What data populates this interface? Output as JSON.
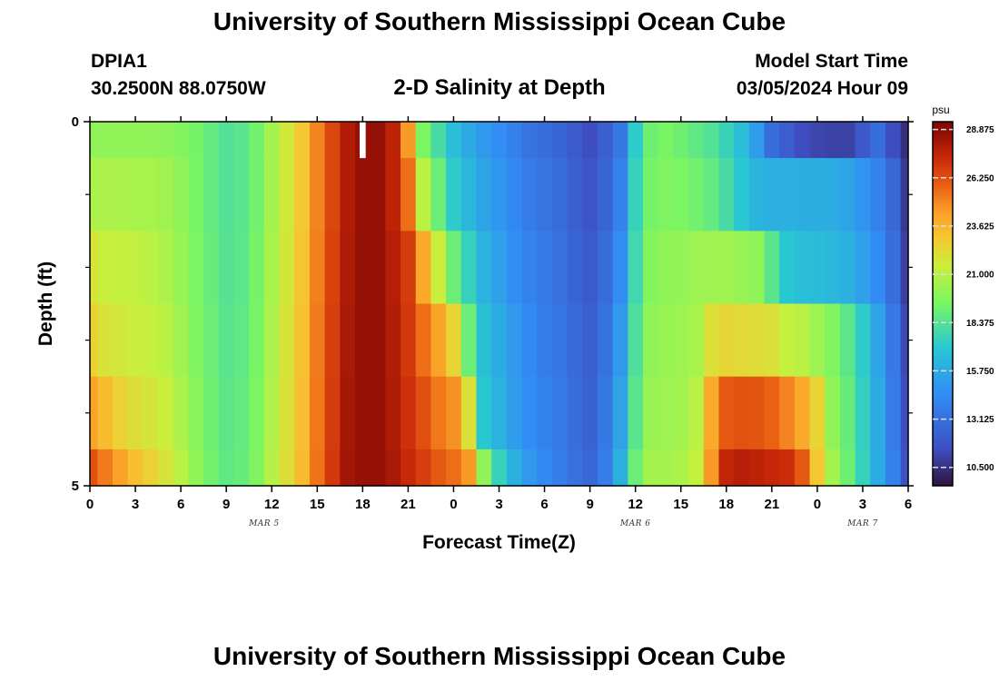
{
  "header": {
    "title": "University of Southern Mississippi Ocean Cube",
    "station_id": "DPIA1",
    "station_coords": "30.2500N  88.0750W",
    "subtitle": "2-D Salinity at Depth",
    "model_start_label": "Model Start Time",
    "model_start_value": "03/05/2024 Hour 09"
  },
  "footer": {
    "title": "University of Southern Mississippi Ocean Cube"
  },
  "chart_data": {
    "type": "heatmap",
    "xlabel": "Forecast Time(Z)",
    "ylabel": "Depth (ft)",
    "x_tick_labels": [
      "0",
      "3",
      "6",
      "9",
      "12",
      "15",
      "18",
      "21",
      "0",
      "3",
      "6",
      "9",
      "12",
      "15",
      "18",
      "21",
      "0",
      "3",
      "6"
    ],
    "x_minor_per_major": 1,
    "date_labels": [
      {
        "text": "MAR 5",
        "at_hour": 11.5
      },
      {
        "text": "MAR 6",
        "at_hour": 36
      },
      {
        "text": "MAR 7",
        "at_hour": 51
      }
    ],
    "x_range_hours": [
      0,
      54
    ],
    "y_tick_labels": [
      {
        "text": "0",
        "depth": 0
      },
      {
        "text": "5",
        "depth": 5
      }
    ],
    "y_minor_ticks": [
      1,
      2,
      3,
      4
    ],
    "ylim": [
      0,
      5
    ],
    "colorbar": {
      "unit": "psu",
      "min": 9.5,
      "max": 29.3,
      "tick_values": [
        28.875,
        26.25,
        23.625,
        21.0,
        18.375,
        15.75,
        13.125,
        10.5
      ],
      "tick_labels": [
        "28.875",
        "26.250",
        "23.625",
        "21.000",
        "18.375",
        "15.750",
        "13.125",
        "10.500"
      ]
    },
    "depth_bands": [
      0,
      0.5,
      1.5,
      2.5,
      3.5,
      4.5,
      5.0
    ],
    "missing_data": [
      {
        "hour": 18,
        "depth_from": 0,
        "depth_to": 0.5
      }
    ],
    "hours": [
      0,
      1,
      2,
      3,
      4,
      5,
      6,
      7,
      8,
      9,
      10,
      11,
      12,
      13,
      14,
      15,
      16,
      17,
      18,
      19,
      20,
      21,
      22,
      23,
      24,
      25,
      26,
      27,
      28,
      29,
      30,
      31,
      32,
      33,
      34,
      35,
      36,
      37,
      38,
      39,
      40,
      41,
      42,
      43,
      44,
      45,
      46,
      47,
      48,
      49,
      50,
      51,
      52,
      53,
      54
    ],
    "salinity_by_band": [
      [
        20.0,
        20.0,
        20.0,
        20.0,
        20.0,
        19.9,
        19.7,
        19.3,
        18.8,
        18.3,
        18.5,
        19.2,
        20.5,
        21.7,
        23.0,
        25.0,
        26.5,
        27.9,
        28.6,
        28.6,
        27.6,
        24.5,
        19.5,
        18.0,
        16.6,
        15.7,
        15.0,
        14.5,
        13.9,
        13.3,
        13.0,
        12.6,
        12.1,
        11.5,
        12.3,
        13.5,
        17.2,
        19.1,
        19.4,
        19.1,
        18.7,
        18.3,
        17.6,
        16.6,
        15.2,
        13.0,
        12.2,
        11.5,
        11.2,
        11.1,
        11.1,
        12.0,
        13.0,
        11.5,
        10.5
      ],
      [
        20.7,
        20.7,
        20.7,
        20.6,
        20.6,
        20.4,
        20.0,
        19.4,
        18.8,
        18.3,
        18.5,
        19.2,
        20.5,
        21.7,
        23.0,
        25.0,
        26.5,
        27.9,
        28.6,
        28.6,
        27.6,
        25.5,
        21.0,
        19.0,
        17.2,
        16.3,
        15.5,
        14.9,
        14.3,
        13.7,
        13.3,
        12.9,
        12.3,
        11.8,
        12.6,
        14.0,
        17.5,
        19.3,
        19.6,
        19.5,
        19.2,
        18.8,
        18.0,
        17.0,
        16.2,
        16.0,
        16.0,
        15.9,
        15.9,
        15.8,
        15.5,
        14.8,
        14.0,
        12.7,
        10.8
      ],
      [
        21.9,
        21.4,
        21.3,
        21.2,
        21.0,
        20.7,
        20.2,
        19.5,
        18.9,
        18.4,
        18.6,
        19.3,
        20.6,
        21.8,
        23.1,
        25.1,
        26.6,
        28.0,
        28.6,
        28.6,
        27.8,
        26.8,
        24.0,
        21.5,
        19.0,
        17.5,
        16.1,
        15.3,
        14.6,
        14.0,
        13.6,
        13.2,
        12.6,
        12.1,
        12.9,
        14.5,
        17.8,
        19.7,
        20.0,
        20.1,
        20.3,
        20.4,
        20.4,
        20.2,
        20.0,
        18.5,
        17.0,
        16.6,
        16.5,
        16.3,
        16.0,
        15.3,
        14.4,
        13.0,
        11.0
      ],
      [
        22.6,
        21.9,
        21.7,
        21.5,
        21.3,
        21.0,
        20.4,
        19.6,
        19.0,
        18.5,
        18.7,
        19.4,
        20.7,
        21.9,
        23.2,
        25.2,
        26.7,
        28.1,
        28.6,
        28.6,
        27.9,
        26.9,
        25.5,
        24.2,
        22.5,
        19.0,
        16.7,
        15.8,
        15.0,
        14.3,
        13.8,
        13.4,
        12.8,
        12.3,
        13.2,
        15.0,
        18.2,
        20.0,
        20.2,
        20.3,
        20.6,
        22.0,
        22.4,
        22.3,
        22.2,
        22.0,
        21.3,
        21.0,
        20.3,
        19.6,
        18.6,
        17.2,
        15.5,
        13.5,
        11.3
      ],
      [
        24.2,
        23.4,
        22.6,
        22.1,
        21.8,
        21.4,
        20.7,
        19.8,
        19.1,
        18.6,
        18.8,
        19.5,
        20.8,
        22.0,
        23.3,
        25.3,
        26.8,
        28.2,
        28.6,
        28.6,
        28.0,
        27.1,
        26.3,
        25.3,
        24.7,
        22.0,
        17.0,
        16.1,
        15.2,
        14.5,
        14.0,
        13.6,
        13.0,
        12.5,
        13.5,
        15.5,
        18.5,
        20.2,
        20.3,
        20.5,
        21.0,
        24.0,
        26.0,
        26.2,
        26.1,
        25.8,
        25.0,
        24.0,
        22.5,
        20.0,
        18.9,
        17.4,
        15.7,
        13.7,
        11.5
      ],
      [
        26.2,
        25.2,
        24.2,
        23.3,
        22.6,
        21.9,
        21.0,
        20.0,
        19.2,
        18.7,
        18.9,
        19.6,
        20.9,
        22.1,
        23.4,
        25.4,
        26.9,
        28.3,
        28.6,
        28.6,
        28.1,
        27.3,
        26.7,
        26.0,
        25.5,
        24.5,
        20.0,
        17.5,
        16.0,
        15.0,
        14.3,
        13.8,
        13.2,
        12.7,
        13.8,
        16.0,
        19.0,
        20.5,
        20.5,
        20.7,
        21.3,
        24.5,
        27.5,
        27.8,
        27.6,
        27.4,
        27.2,
        26.0,
        23.0,
        20.5,
        19.1,
        17.5,
        15.8,
        13.9,
        11.7
      ]
    ]
  }
}
